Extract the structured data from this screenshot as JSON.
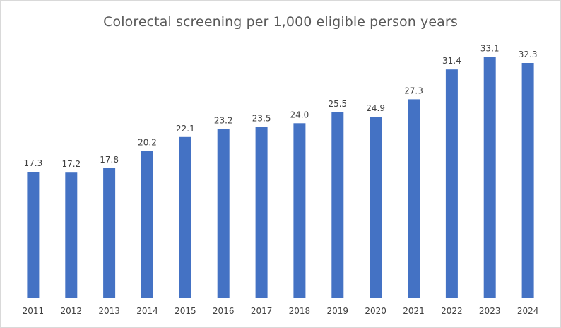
{
  "chart_data": {
    "type": "bar",
    "title": "Colorectal screening per 1,000 eligible person years",
    "xlabel": "",
    "ylabel": "",
    "categories": [
      "2011",
      "2012",
      "2013",
      "2014",
      "2015",
      "2016",
      "2017",
      "2018",
      "2019",
      "2020",
      "2021",
      "2022",
      "2023",
      "2024"
    ],
    "values": [
      17.3,
      17.2,
      17.8,
      20.2,
      22.1,
      23.2,
      23.5,
      24.0,
      25.5,
      24.9,
      27.3,
      31.4,
      33.1,
      32.3
    ],
    "value_labels": [
      "17.3",
      "17.2",
      "17.8",
      "20.2",
      "22.1",
      "23.2",
      "23.5",
      "24.0",
      "25.5",
      "24.9",
      "27.3",
      "31.4",
      "33.1",
      "32.3"
    ],
    "ylim": [
      0,
      35
    ],
    "grid": false,
    "legend": "none",
    "bar_color": "#4472c4",
    "axis_color": "#d9d9d9"
  }
}
